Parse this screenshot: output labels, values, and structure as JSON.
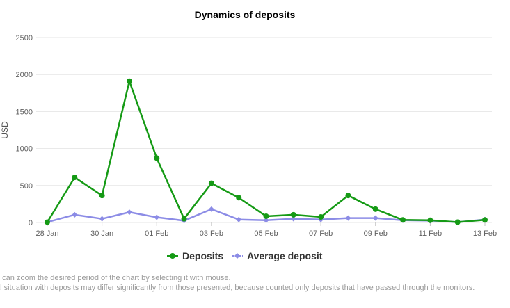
{
  "chart_data": {
    "type": "line",
    "title": "Dynamics of deposits",
    "xlabel": "",
    "ylabel": "USD",
    "ylim": [
      0,
      2500
    ],
    "yticks": [
      0,
      500,
      1000,
      1500,
      2000,
      2500
    ],
    "xlim": [
      0,
      16
    ],
    "xtick_labels": [
      {
        "index": 0,
        "label": "28 Jan"
      },
      {
        "index": 2,
        "label": "30 Jan"
      },
      {
        "index": 4,
        "label": "01 Feb"
      },
      {
        "index": 6,
        "label": "03 Feb"
      },
      {
        "index": 8,
        "label": "05 Feb"
      },
      {
        "index": 10,
        "label": "07 Feb"
      },
      {
        "index": 12,
        "label": "09 Feb"
      },
      {
        "index": 14,
        "label": "11 Feb"
      },
      {
        "index": 16,
        "label": "13 Feb"
      }
    ],
    "grid": true,
    "legend_position": "bottom-center",
    "series": [
      {
        "name": "Deposits",
        "color": "#159a15",
        "marker": "circle",
        "values": [
          5,
          610,
          365,
          1910,
          870,
          50,
          530,
          335,
          85,
          105,
          75,
          365,
          180,
          35,
          30,
          5,
          35
        ]
      },
      {
        "name": "Average deposit",
        "color": "#8c8ce6",
        "marker": "diamond",
        "values": [
          5,
          105,
          50,
          140,
          70,
          25,
          180,
          40,
          30,
          50,
          40,
          60,
          60,
          30,
          25,
          5,
          40
        ]
      }
    ]
  },
  "notes": [
    "u can zoom the desired period of the chart by selecting it with mouse.",
    "al situation with deposits may differ significantly from those presented, because counted only deposits that have passed through the monitors."
  ]
}
